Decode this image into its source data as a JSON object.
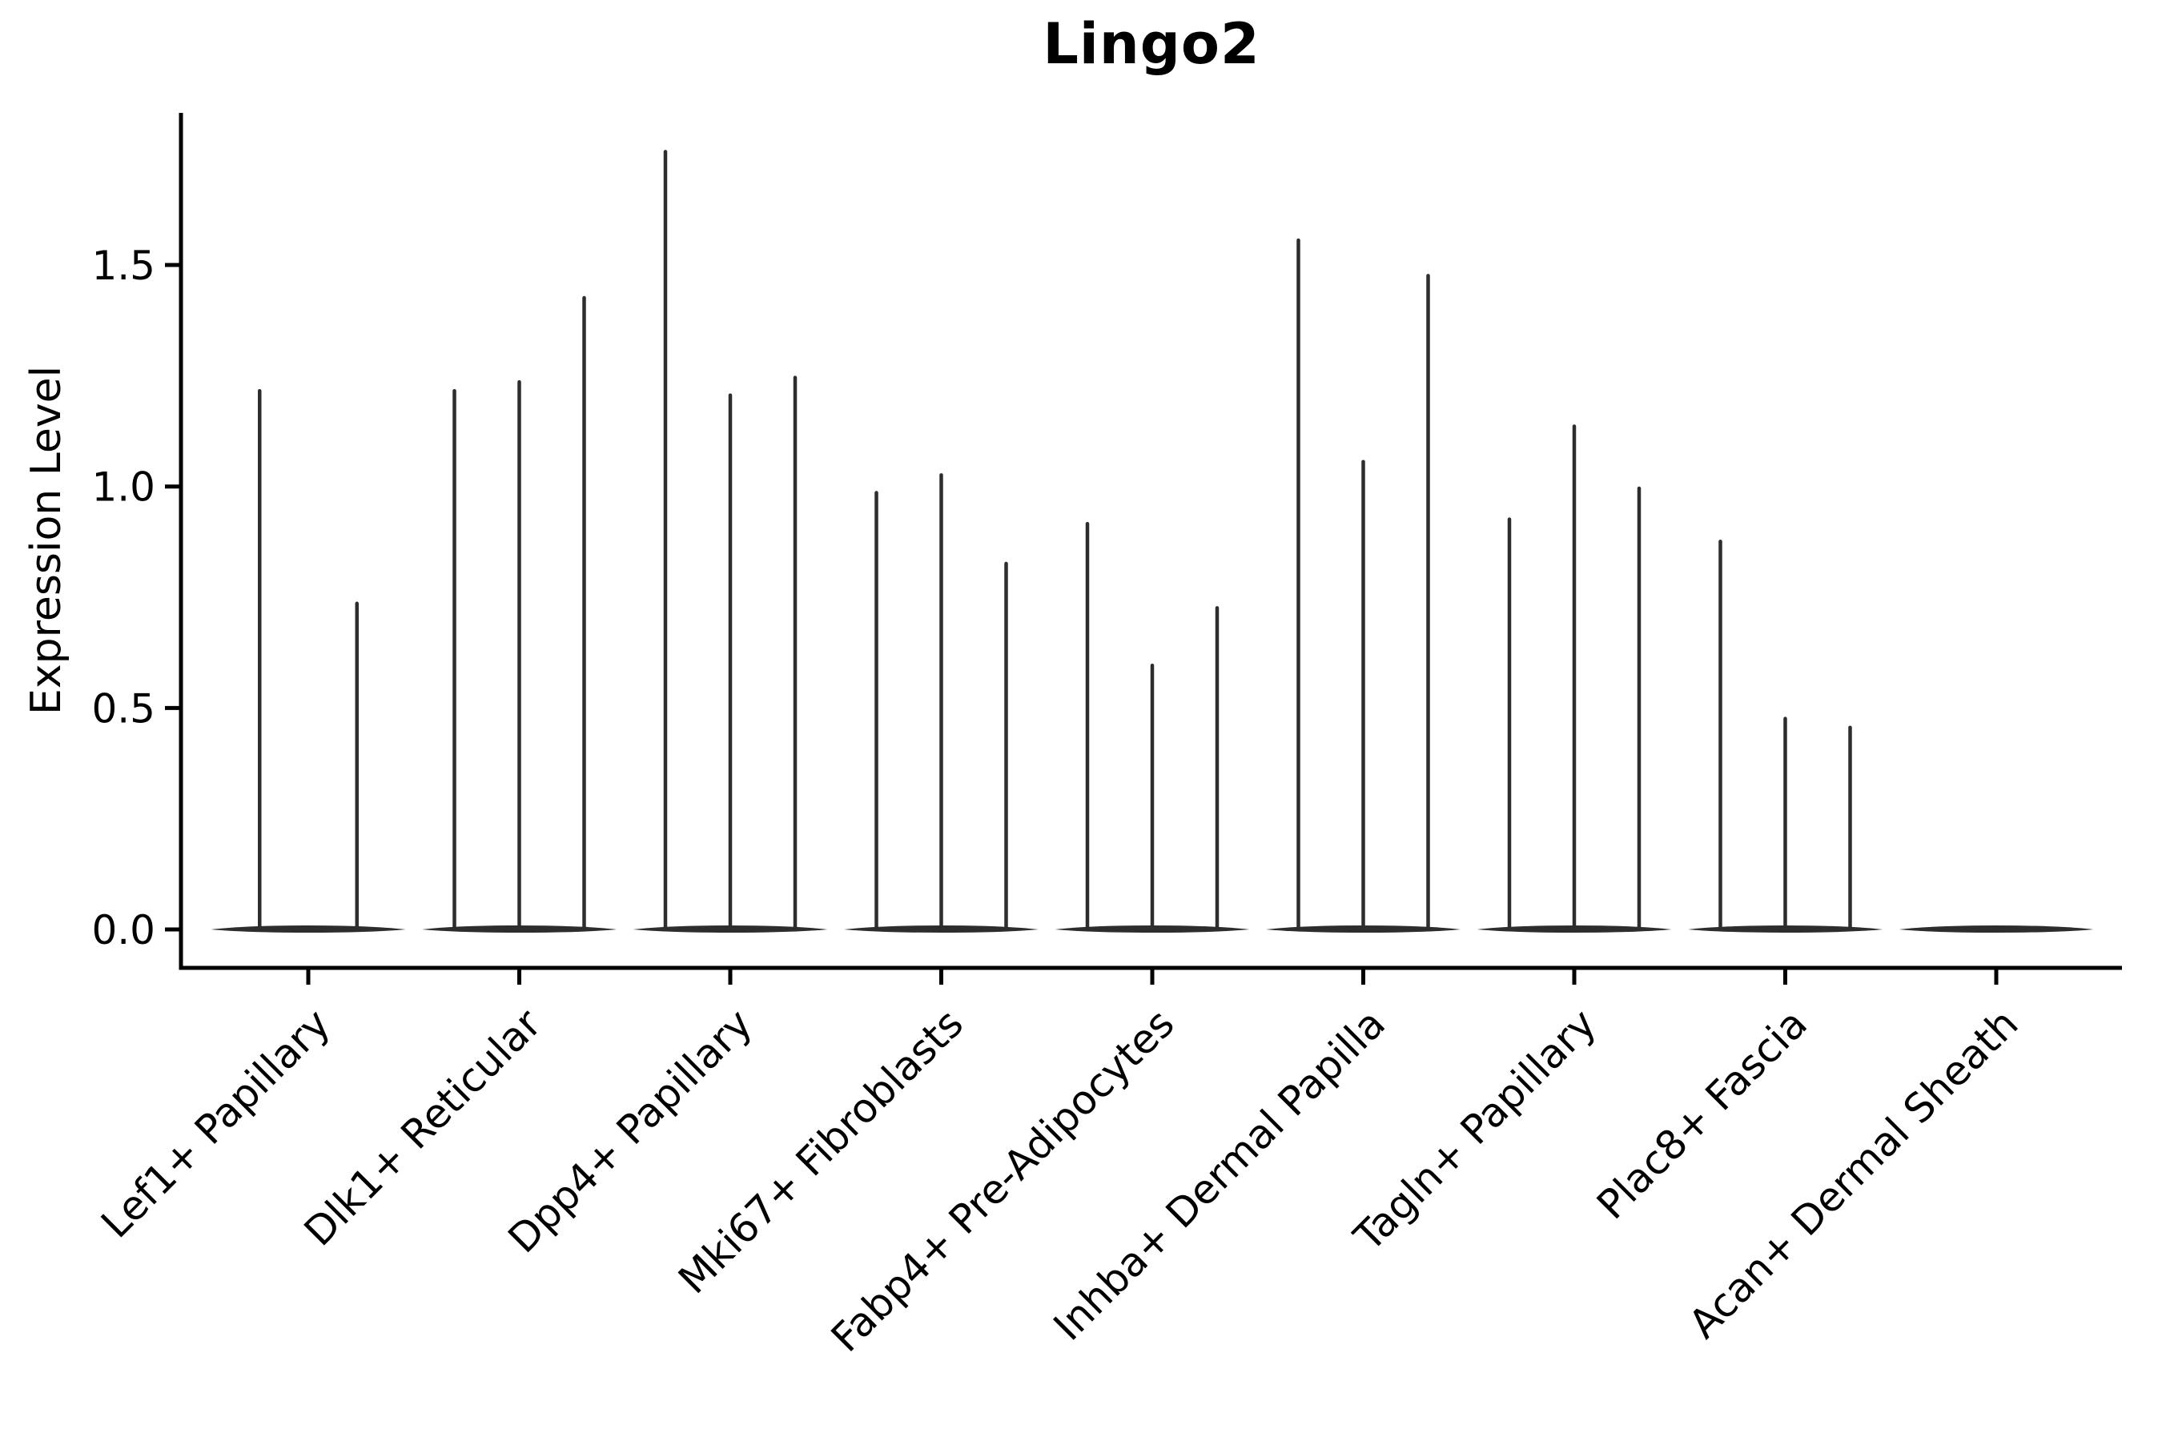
{
  "title": "Lingo2",
  "axes": {
    "ylabel": "Expression Level",
    "xlabel": "",
    "y_tick_labels": [
      "0.0",
      "0.5",
      "1.0",
      "1.5"
    ]
  },
  "chart_data": {
    "type": "violin",
    "title": "Lingo2",
    "ylabel": "Expression Level",
    "xlabel": "",
    "categories": [
      "Lef1+ Papillary",
      "Dlk1+ Reticular",
      "Dpp4+ Papillary",
      "Mki67+ Fibroblasts",
      "Fabp4+ Pre-Adipocytes",
      "Inhba+ Dermal Papilla",
      "Tagln+ Papillary",
      "Plac8+ Fascia",
      "Acan+ Dermal Sheath"
    ],
    "series": [
      {
        "category": "Lef1+ Papillary",
        "violin_max_values": [
          1.22,
          0.74
        ]
      },
      {
        "category": "Dlk1+ Reticular",
        "violin_max_values": [
          1.22,
          1.24,
          1.43
        ]
      },
      {
        "category": "Dpp4+ Papillary",
        "violin_max_values": [
          1.76,
          1.21,
          1.25
        ]
      },
      {
        "category": "Mki67+ Fibroblasts",
        "violin_max_values": [
          0.99,
          1.03,
          0.83
        ]
      },
      {
        "category": "Fabp4+ Pre-Adipocytes",
        "violin_max_values": [
          0.92,
          0.6,
          0.73
        ]
      },
      {
        "category": "Inhba+ Dermal Papilla",
        "violin_max_values": [
          1.56,
          1.06,
          1.48
        ]
      },
      {
        "category": "Tagln+ Papillary",
        "violin_max_values": [
          0.93,
          1.14,
          1.0
        ]
      },
      {
        "category": "Plac8+ Fascia",
        "violin_max_values": [
          0.88,
          0.48,
          0.46
        ]
      },
      {
        "category": "Acan+ Dermal Sheath",
        "violin_max_values": []
      }
    ],
    "y_ticks": [
      0.0,
      0.5,
      1.0,
      1.5
    ],
    "ylim": [
      -0.09,
      1.85
    ],
    "grid": false,
    "legend": "none",
    "style_note": "Seurat-style violin plot: density mass collapsed at 0 with thin spikes rising to each violin's maximum expression value"
  },
  "colors": {
    "violin": "#2d2d2d",
    "spine": "#000000",
    "tick": "#000000",
    "text": "#000000",
    "background": "#ffffff"
  }
}
